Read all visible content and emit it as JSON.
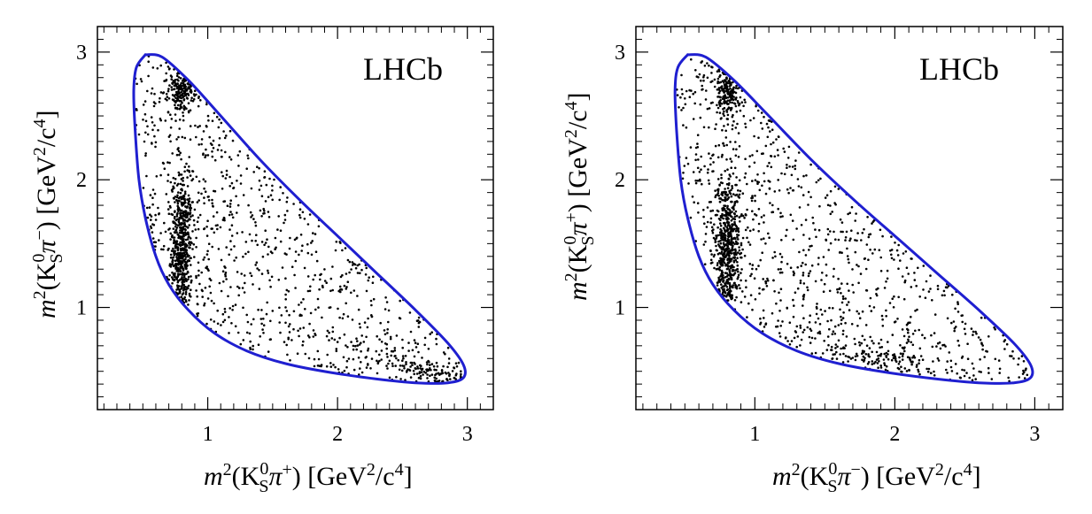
{
  "chart_data": [
    {
      "type": "scatter",
      "brand": "LHCb",
      "xlabel": {
        "base": "m",
        "sup": "2",
        "open": "(K",
        "sup0": "0",
        "sub": "S",
        "pi": "π",
        "charge": "+",
        "unit": ") [GeV",
        "unitsup": "2",
        "unitmid": "/c",
        "unitsup2": "4",
        "close": "]"
      },
      "ylabel": {
        "base": "m",
        "sup": "2",
        "open": "(K",
        "sup0": "0",
        "sub": "S",
        "pi": "π",
        "charge": "−",
        "unit": ") [GeV",
        "unitsup": "2",
        "unitmid": "/c",
        "unitsup2": "4",
        "close": "]"
      },
      "xlim": [
        0.15,
        3.2
      ],
      "ylim": [
        0.2,
        3.2
      ],
      "xticks": [
        "1",
        "2",
        "3"
      ],
      "yticks": [
        "1",
        "2",
        "3"
      ],
      "boundary_color": "#1f1fd0",
      "point_color": "#000000",
      "boundary": [
        [
          0.52,
          2.98
        ],
        [
          0.45,
          2.88
        ],
        [
          0.43,
          2.7
        ],
        [
          0.44,
          2.4
        ],
        [
          0.47,
          2.0
        ],
        [
          0.52,
          1.7
        ],
        [
          0.6,
          1.4
        ],
        [
          0.7,
          1.18
        ],
        [
          0.85,
          0.98
        ],
        [
          1.05,
          0.8
        ],
        [
          1.3,
          0.66
        ],
        [
          1.6,
          0.56
        ],
        [
          1.95,
          0.49
        ],
        [
          2.3,
          0.44
        ],
        [
          2.6,
          0.41
        ],
        [
          2.85,
          0.41
        ],
        [
          2.97,
          0.45
        ],
        [
          2.97,
          0.55
        ],
        [
          2.85,
          0.72
        ],
        [
          2.6,
          0.98
        ],
        [
          2.3,
          1.27
        ],
        [
          2.0,
          1.56
        ],
        [
          1.7,
          1.85
        ],
        [
          1.4,
          2.16
        ],
        [
          1.1,
          2.5
        ],
        [
          0.85,
          2.78
        ],
        [
          0.65,
          2.96
        ],
        [
          0.52,
          2.98
        ]
      ],
      "clusters": [
        {
          "name": "Kstar-vertical",
          "x": 0.8,
          "y": 1.45,
          "sx": 0.04,
          "sy": 0.28,
          "n": 520
        },
        {
          "name": "Kstar-top",
          "x": 0.8,
          "y": 2.72,
          "sx": 0.05,
          "sy": 0.1,
          "n": 170
        },
        {
          "name": "rho-diagonal",
          "x": 2.7,
          "y": 0.5,
          "sx": 0.1,
          "sy": 0.05,
          "n": 120
        },
        {
          "name": "background",
          "x": 1.5,
          "y": 1.4,
          "sx": 0.8,
          "sy": 0.7,
          "n": 900
        }
      ]
    },
    {
      "type": "scatter",
      "brand": "LHCb",
      "xlabel": {
        "base": "m",
        "sup": "2",
        "open": "(K",
        "sup0": "0",
        "sub": "S",
        "pi": "π",
        "charge": "−",
        "unit": ") [GeV",
        "unitsup": "2",
        "unitmid": "/c",
        "unitsup2": "4",
        "close": "]"
      },
      "ylabel": {
        "base": "m",
        "sup": "2",
        "open": "(K",
        "sup0": "0",
        "sub": "S",
        "pi": "π",
        "charge": "+",
        "unit": ") [GeV",
        "unitsup": "2",
        "unitmid": "/c",
        "unitsup2": "4",
        "close": "]"
      },
      "xlim": [
        0.15,
        3.2
      ],
      "ylim": [
        0.2,
        3.2
      ],
      "xticks": [
        "1",
        "2",
        "3"
      ],
      "yticks": [
        "1",
        "2",
        "3"
      ],
      "boundary_color": "#1f1fd0",
      "point_color": "#000000",
      "boundary": [
        [
          0.52,
          2.98
        ],
        [
          0.45,
          2.88
        ],
        [
          0.43,
          2.7
        ],
        [
          0.44,
          2.4
        ],
        [
          0.47,
          2.0
        ],
        [
          0.52,
          1.7
        ],
        [
          0.6,
          1.4
        ],
        [
          0.7,
          1.18
        ],
        [
          0.85,
          0.98
        ],
        [
          1.05,
          0.8
        ],
        [
          1.3,
          0.66
        ],
        [
          1.6,
          0.56
        ],
        [
          1.95,
          0.49
        ],
        [
          2.3,
          0.44
        ],
        [
          2.6,
          0.41
        ],
        [
          2.85,
          0.41
        ],
        [
          2.97,
          0.45
        ],
        [
          2.97,
          0.55
        ],
        [
          2.85,
          0.72
        ],
        [
          2.6,
          0.98
        ],
        [
          2.3,
          1.27
        ],
        [
          2.0,
          1.56
        ],
        [
          1.7,
          1.85
        ],
        [
          1.4,
          2.16
        ],
        [
          1.1,
          2.5
        ],
        [
          0.85,
          2.78
        ],
        [
          0.65,
          2.96
        ],
        [
          0.52,
          2.98
        ]
      ],
      "clusters": [
        {
          "name": "Kstar-vertical",
          "x": 0.8,
          "y": 1.45,
          "sx": 0.045,
          "sy": 0.3,
          "n": 560
        },
        {
          "name": "Kstar-top",
          "x": 0.8,
          "y": 2.7,
          "sx": 0.05,
          "sy": 0.12,
          "n": 180
        },
        {
          "name": "rho-diagonal",
          "x": 1.9,
          "y": 0.62,
          "sx": 0.12,
          "sy": 0.07,
          "n": 150
        },
        {
          "name": "background",
          "x": 1.5,
          "y": 1.4,
          "sx": 0.8,
          "sy": 0.7,
          "n": 880
        }
      ]
    }
  ]
}
